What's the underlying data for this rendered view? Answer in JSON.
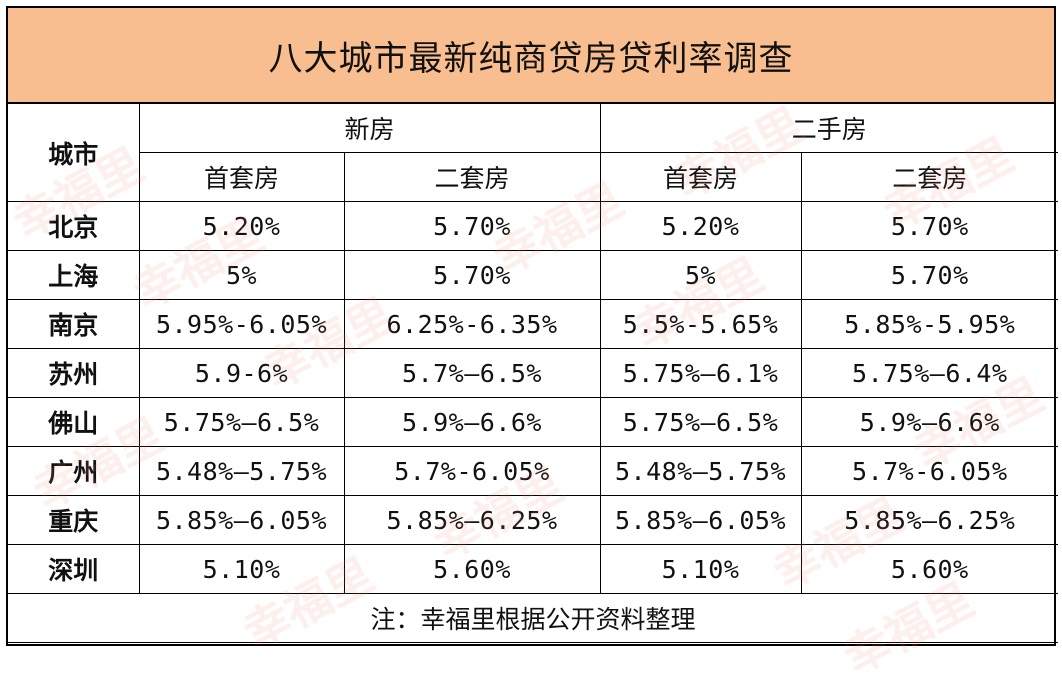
{
  "title": "八大城市最新纯商贷房贷利率调查",
  "header": {
    "city_label": "城市",
    "groups": [
      "新房",
      "二手房"
    ],
    "sub": [
      "首套房",
      "二套房",
      "首套房",
      "二套房"
    ]
  },
  "rows": [
    {
      "city": "北京",
      "values": [
        "5.20%",
        "5.70%",
        "5.20%",
        "5.70%"
      ]
    },
    {
      "city": "上海",
      "values": [
        "5%",
        "5.70%",
        "5%",
        "5.70%"
      ]
    },
    {
      "city": "南京",
      "values": [
        "5.95%-6.05%",
        "6.25%-6.35%",
        "5.5%-5.65%",
        "5.85%-5.95%"
      ]
    },
    {
      "city": "苏州",
      "values": [
        "5.9-6%",
        "5.7%—6.5%",
        "5.75%—6.1%",
        "5.75%—6.4%"
      ]
    },
    {
      "city": "佛山",
      "values": [
        "5.75%—6.5%",
        "5.9%—6.6%",
        "5.75%—6.5%",
        "5.9%—6.6%"
      ]
    },
    {
      "city": "广州",
      "values": [
        "5.48%—5.75%",
        "5.7%-6.05%",
        "5.48%—5.75%",
        "5.7%-6.05%"
      ]
    },
    {
      "city": "重庆",
      "values": [
        "5.85%—6.05%",
        "5.85%—6.25%",
        "5.85%—6.05%",
        "5.85%—6.25%"
      ]
    },
    {
      "city": "深圳",
      "values": [
        "5.10%",
        "5.60%",
        "5.10%",
        "5.60%"
      ]
    }
  ],
  "note": "注：幸福里根据公开资料整理",
  "watermark_text": "幸福里",
  "colors": {
    "title_bg": "#f8be90",
    "border": "#000000",
    "watermark": "#eb826e"
  }
}
